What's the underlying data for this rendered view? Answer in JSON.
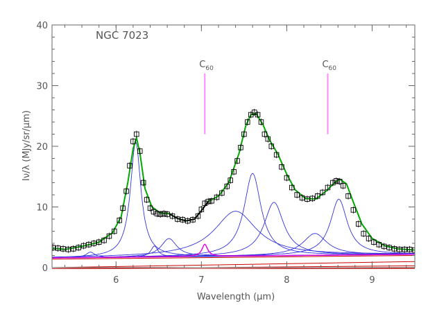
{
  "chart_data": {
    "type": "line",
    "title": "NGC 7023",
    "xlabel": "Wavelength (μm)",
    "ylabel": "Iν/λ (MJy/sr/μm)",
    "xlim": [
      5.25,
      9.5
    ],
    "ylim": [
      0,
      40
    ],
    "x_ticks": [
      "6",
      "7",
      "8",
      "9"
    ],
    "y_ticks": [
      "0",
      "10",
      "20",
      "30",
      "40"
    ],
    "grid": false,
    "annotations": [
      {
        "text": "C60",
        "base": "C",
        "sub": "60",
        "x": 7.04,
        "y_range": [
          22,
          32
        ]
      },
      {
        "text": "C60",
        "base": "C",
        "sub": "60",
        "x": 8.48,
        "y_range": [
          22,
          32
        ]
      }
    ],
    "colors": {
      "observed": "#000000",
      "total_fit": "#00aa00",
      "pah_components": "#3333dd",
      "c60_component": "#dd00dd",
      "continuum": "#cc0000",
      "c60_marker": "#ff88ff",
      "axes": "#666666"
    },
    "series": [
      {
        "role": "observed",
        "style": "square-markers-with-errorbars",
        "x": [
          5.26,
          5.32,
          5.38,
          5.44,
          5.5,
          5.56,
          5.62,
          5.68,
          5.74,
          5.8,
          5.86,
          5.92,
          5.98,
          6.04,
          6.08,
          6.12,
          6.16,
          6.2,
          6.24,
          6.28,
          6.32,
          6.36,
          6.4,
          6.44,
          6.48,
          6.52,
          6.56,
          6.6,
          6.66,
          6.72,
          6.78,
          6.84,
          6.9,
          6.96,
          7.0,
          7.04,
          7.08,
          7.12,
          7.18,
          7.24,
          7.3,
          7.34,
          7.38,
          7.42,
          7.46,
          7.5,
          7.54,
          7.58,
          7.62,
          7.66,
          7.7,
          7.74,
          7.78,
          7.82,
          7.88,
          7.94,
          8.0,
          8.06,
          8.12,
          8.18,
          8.24,
          8.3,
          8.36,
          8.42,
          8.48,
          8.54,
          8.58,
          8.62,
          8.66,
          8.72,
          8.78,
          8.84,
          8.9,
          8.96,
          9.02,
          9.08,
          9.14,
          9.2,
          9.26,
          9.32,
          9.38,
          9.44,
          9.5
        ],
        "y": [
          3.3,
          3.2,
          3.1,
          3.0,
          3.1,
          3.3,
          3.6,
          3.8,
          4.0,
          4.2,
          4.5,
          5.2,
          6.0,
          7.8,
          9.8,
          12.6,
          16.8,
          20.8,
          22.0,
          19.2,
          14.0,
          11.2,
          9.8,
          9.2,
          8.9,
          8.8,
          8.9,
          8.8,
          8.5,
          8.0,
          7.9,
          7.7,
          7.9,
          8.5,
          9.6,
          10.6,
          10.9,
          11.0,
          11.6,
          12.3,
          13.4,
          14.4,
          15.8,
          17.6,
          19.8,
          22.0,
          24.0,
          25.2,
          25.6,
          25.2,
          24.0,
          22.0,
          21.2,
          20.0,
          18.6,
          16.6,
          14.8,
          13.2,
          12.0,
          11.5,
          11.3,
          11.4,
          11.8,
          12.4,
          13.2,
          14.0,
          14.3,
          14.2,
          13.5,
          11.8,
          9.5,
          7.2,
          5.6,
          4.8,
          4.2,
          3.8,
          3.5,
          3.3,
          3.1,
          3.0,
          3.0,
          3.0,
          2.9
        ]
      },
      {
        "role": "total-fit",
        "x": [
          5.26,
          5.4,
          5.6,
          5.8,
          5.96,
          6.06,
          6.14,
          6.2,
          6.24,
          6.28,
          6.34,
          6.42,
          6.52,
          6.62,
          6.72,
          6.82,
          6.92,
          7.0,
          7.08,
          7.2,
          7.32,
          7.44,
          7.52,
          7.58,
          7.64,
          7.72,
          7.8,
          7.9,
          8.0,
          8.1,
          8.22,
          8.34,
          8.46,
          8.56,
          8.62,
          8.7,
          8.78,
          8.88,
          9.0,
          9.15,
          9.3,
          9.5
        ],
        "y": [
          3.2,
          3.0,
          3.5,
          4.2,
          5.8,
          8.4,
          14.2,
          19.6,
          21.4,
          18.8,
          13.0,
          10.0,
          9.0,
          8.9,
          8.1,
          7.7,
          8.0,
          9.4,
          10.9,
          11.8,
          14.0,
          18.8,
          23.4,
          25.2,
          25.4,
          23.6,
          21.0,
          18.6,
          15.4,
          12.8,
          11.4,
          11.3,
          12.6,
          14.0,
          14.6,
          13.8,
          10.8,
          7.2,
          4.8,
          3.6,
          3.1,
          2.9
        ]
      },
      {
        "role": "observed-segment",
        "x": [
          6.62,
          6.72,
          6.82,
          6.92,
          7.0,
          7.08
        ],
        "y": [
          8.9,
          8.1,
          7.7,
          8.0,
          9.4,
          10.9
        ]
      }
    ],
    "components": [
      {
        "role": "pah",
        "center": 6.23,
        "amplitude": 19.0,
        "fwhm": 0.15
      },
      {
        "role": "pah",
        "center": 5.7,
        "amplitude": 0.9,
        "fwhm": 0.12
      },
      {
        "role": "pah",
        "center": 6.45,
        "amplitude": 1.8,
        "fwhm": 0.1
      },
      {
        "role": "pah",
        "center": 6.62,
        "amplitude": 3.0,
        "fwhm": 0.22
      },
      {
        "role": "pah",
        "center": 7.4,
        "amplitude": 7.4,
        "fwhm": 0.6
      },
      {
        "role": "pah",
        "center": 7.6,
        "amplitude": 13.6,
        "fwhm": 0.24
      },
      {
        "role": "pah",
        "center": 7.85,
        "amplitude": 8.8,
        "fwhm": 0.28
      },
      {
        "role": "pah",
        "center": 8.33,
        "amplitude": 3.6,
        "fwhm": 0.34
      },
      {
        "role": "pah",
        "center": 8.61,
        "amplitude": 9.2,
        "fwhm": 0.24
      },
      {
        "role": "c60",
        "center": 7.04,
        "amplitude": 2.0,
        "fwhm": 0.08
      }
    ],
    "baseline": {
      "x": [
        5.25,
        9.5
      ],
      "y": [
        1.6,
        2.2
      ]
    },
    "continuum_lines": [
      {
        "x": [
          5.25,
          9.5
        ],
        "y": [
          1.4,
          2.0
        ]
      },
      {
        "x": [
          5.25,
          9.5
        ],
        "y": [
          0.0,
          1.0
        ]
      },
      {
        "x": [
          5.25,
          9.5
        ],
        "y": [
          -0.2,
          0.3
        ]
      },
      {
        "x": [
          5.25,
          9.5
        ],
        "y": [
          -0.3,
          -0.1
        ]
      },
      {
        "x": [
          5.25,
          9.5
        ],
        "y": [
          -0.35,
          -0.25
        ]
      }
    ]
  }
}
